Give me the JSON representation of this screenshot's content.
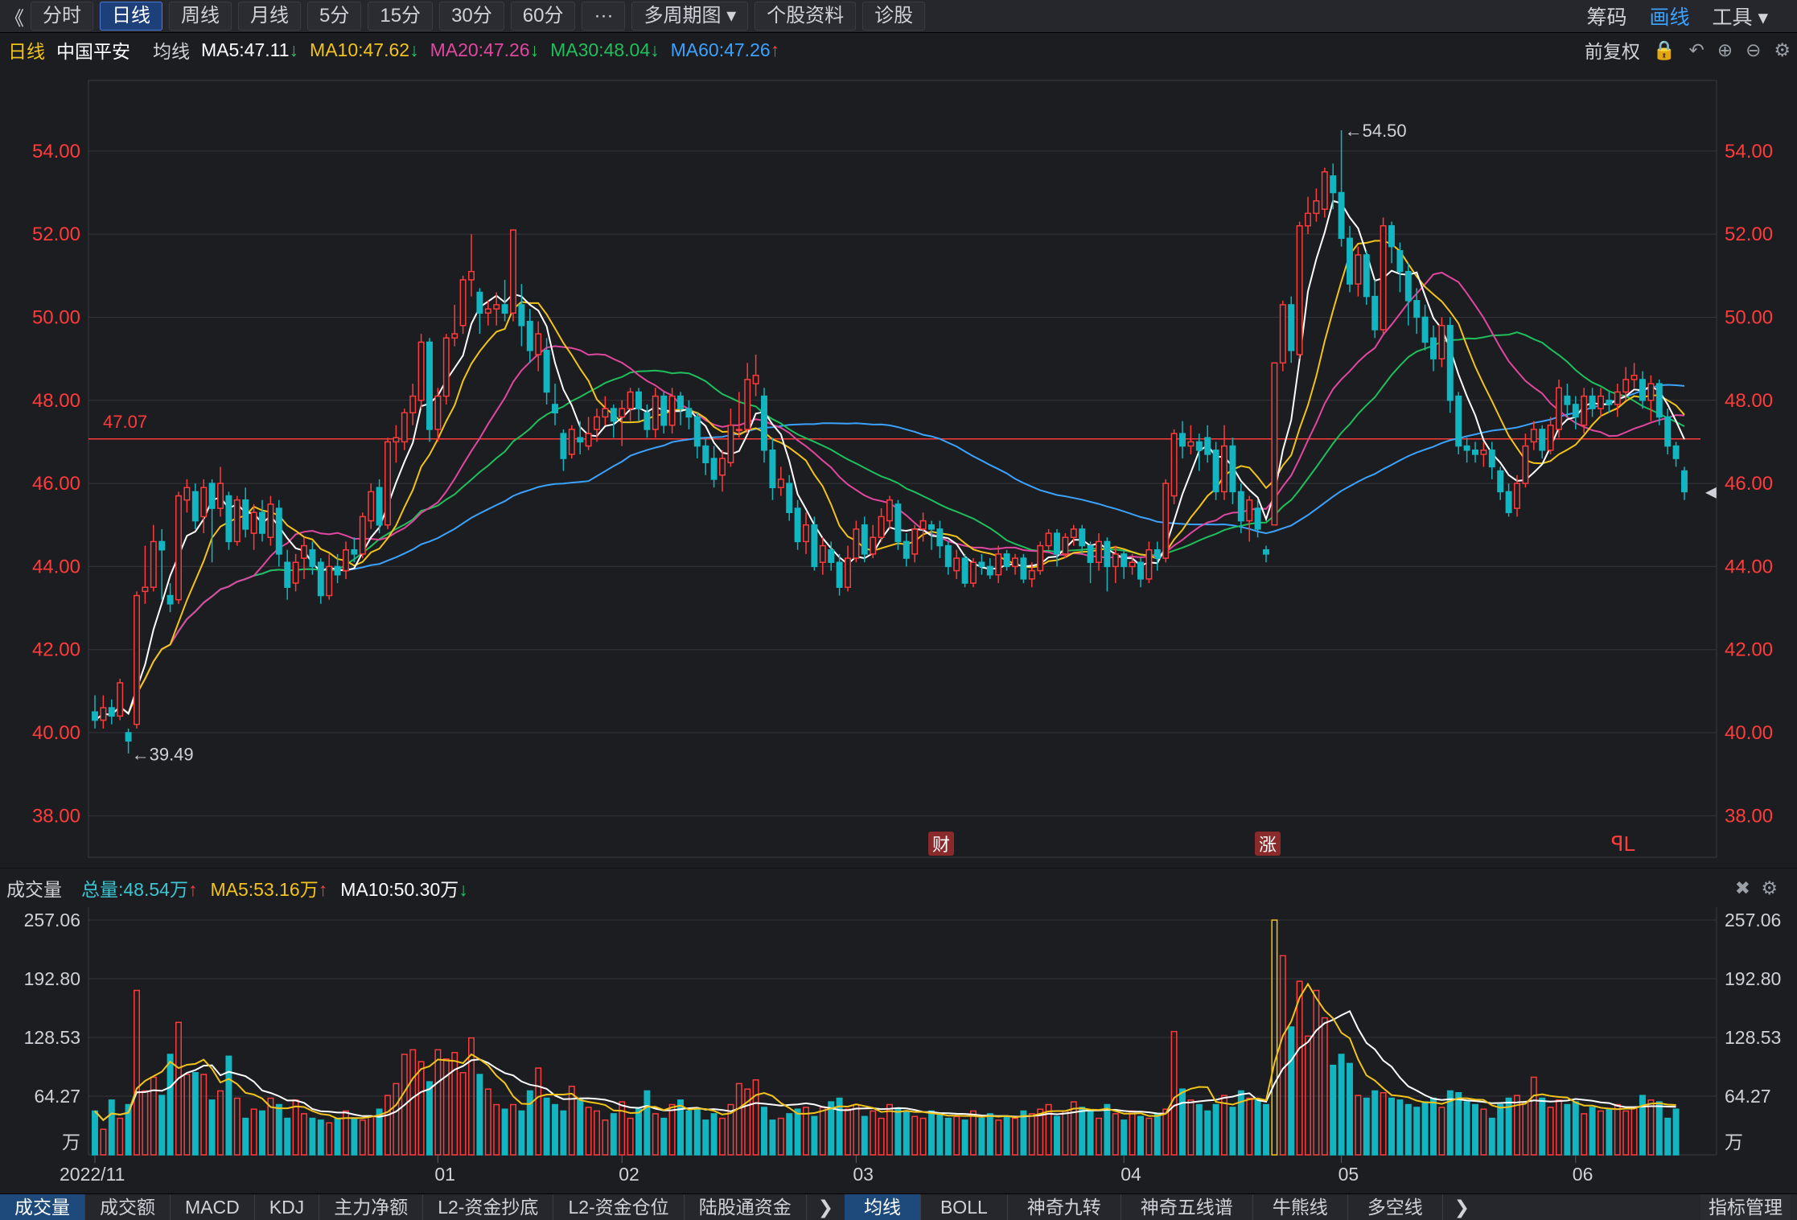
{
  "toolbar": {
    "back": "《",
    "periods": [
      "分时",
      "日线",
      "周线",
      "月线",
      "5分",
      "15分",
      "30分",
      "60分",
      "···",
      "多周期图 ▾",
      "个股资料",
      "诊股"
    ],
    "active_index": 1,
    "right": [
      "筹码",
      "画线",
      "工具 ▾"
    ]
  },
  "ma_line": {
    "period": "日线",
    "stock": "中国平安",
    "label": "均线",
    "items": [
      {
        "text": "MA5:47.11",
        "arrow": "↓",
        "color": "#ffffff",
        "arrow_color": "#22c55e"
      },
      {
        "text": "MA10:47.62",
        "arrow": "↓",
        "color": "#f2c31a",
        "arrow_color": "#22c55e"
      },
      {
        "text": "MA20:47.26",
        "arrow": "↓",
        "color": "#e0479e",
        "arrow_color": "#22c55e"
      },
      {
        "text": "MA30:48.04",
        "arrow": "↓",
        "color": "#1fbf5b",
        "arrow_color": "#22c55e"
      },
      {
        "text": "MA60:47.26",
        "arrow": "↑",
        "color": "#3ba2ff",
        "arrow_color": "#ff3b3b"
      }
    ],
    "right_label": "前复权"
  },
  "chart_data": {
    "type": "candlestick",
    "y_ticks": [
      "54.00",
      "52.00",
      "50.00",
      "48.00",
      "46.00",
      "44.00",
      "42.00",
      "40.00",
      "38.00"
    ],
    "ylim": [
      37,
      55.7
    ],
    "ref_line": {
      "value": 47.07,
      "label": "47.07"
    },
    "high_marker": {
      "value": 54.5,
      "label": "←54.50"
    },
    "low_marker": {
      "value": 39.49,
      "label": "←39.49"
    },
    "x_labels": [
      "2022/11",
      "01",
      "02",
      "03",
      "04",
      "05",
      "06"
    ],
    "event_marks": [
      "财",
      "涨",
      "ꟼL"
    ],
    "candles": [
      [
        40.5,
        40.3,
        40.9,
        40.1
      ],
      [
        40.3,
        40.6,
        40.9,
        40.1
      ],
      [
        40.6,
        40.4,
        40.8,
        40.2
      ],
      [
        40.4,
        41.2,
        41.3,
        40.3
      ],
      [
        40.0,
        39.8,
        40.1,
        39.5
      ],
      [
        40.2,
        43.3,
        43.4,
        40.1
      ],
      [
        43.4,
        43.5,
        44.5,
        43.1
      ],
      [
        43.5,
        44.6,
        45.0,
        43.4
      ],
      [
        44.6,
        44.4,
        44.9,
        43.2
      ],
      [
        43.3,
        43.1,
        43.6,
        42.9
      ],
      [
        43.2,
        45.7,
        45.8,
        43.1
      ],
      [
        45.6,
        45.9,
        46.1,
        45.3
      ],
      [
        45.8,
        45.1,
        46.0,
        44.9
      ],
      [
        45.2,
        45.9,
        46.1,
        44.8
      ],
      [
        46.0,
        45.4,
        46.1,
        44.1
      ],
      [
        45.4,
        46.0,
        46.4,
        45.2
      ],
      [
        45.7,
        44.6,
        45.8,
        44.4
      ],
      [
        44.6,
        45.6,
        45.7,
        44.5
      ],
      [
        45.6,
        44.9,
        45.9,
        44.7
      ],
      [
        44.8,
        45.3,
        45.5,
        44.4
      ],
      [
        45.3,
        44.8,
        45.6,
        44.6
      ],
      [
        44.7,
        45.5,
        45.7,
        44.5
      ],
      [
        45.4,
        44.3,
        45.6,
        44.0
      ],
      [
        44.1,
        43.5,
        44.4,
        43.2
      ],
      [
        43.6,
        44.1,
        44.3,
        43.4
      ],
      [
        44.2,
        44.5,
        44.7,
        43.7
      ],
      [
        44.4,
        44.0,
        44.6,
        43.8
      ],
      [
        44.1,
        43.3,
        44.2,
        43.1
      ],
      [
        43.3,
        44.0,
        44.3,
        43.2
      ],
      [
        44.0,
        43.8,
        44.3,
        43.6
      ],
      [
        43.9,
        44.4,
        44.6,
        43.7
      ],
      [
        44.4,
        44.3,
        44.7,
        44.1
      ],
      [
        44.3,
        45.2,
        45.3,
        44.2
      ],
      [
        45.1,
        45.8,
        46.0,
        44.9
      ],
      [
        45.9,
        45.0,
        46.1,
        44.8
      ],
      [
        45.0,
        47.0,
        47.1,
        44.9
      ],
      [
        47.0,
        47.1,
        47.4,
        46.5
      ],
      [
        47.0,
        47.7,
        47.8,
        46.8
      ],
      [
        47.7,
        48.1,
        48.4,
        47.4
      ],
      [
        48.0,
        49.4,
        49.6,
        47.8
      ],
      [
        49.4,
        47.3,
        49.5,
        47.0
      ],
      [
        47.3,
        48.1,
        48.3,
        47.0
      ],
      [
        48.1,
        49.5,
        49.6,
        47.9
      ],
      [
        49.5,
        49.6,
        50.3,
        49.3
      ],
      [
        49.8,
        50.9,
        51.0,
        49.6
      ],
      [
        50.9,
        51.1,
        52.0,
        50.5
      ],
      [
        50.6,
        50.1,
        50.7,
        49.6
      ],
      [
        50.1,
        50.2,
        50.4,
        49.8
      ],
      [
        50.2,
        50.3,
        50.6,
        49.8
      ],
      [
        50.3,
        50.1,
        50.9,
        49.9
      ],
      [
        50.1,
        52.1,
        52.1,
        49.9
      ],
      [
        50.3,
        49.8,
        50.8,
        49.3
      ],
      [
        49.9,
        49.2,
        50.2,
        48.9
      ],
      [
        49.1,
        49.6,
        49.9,
        48.7
      ],
      [
        49.2,
        48.2,
        49.5,
        47.9
      ],
      [
        47.9,
        47.7,
        48.4,
        47.4
      ],
      [
        47.2,
        46.6,
        47.3,
        46.3
      ],
      [
        46.7,
        47.3,
        47.4,
        46.6
      ],
      [
        47.1,
        47.0,
        47.5,
        46.7
      ],
      [
        46.9,
        47.2,
        47.6,
        46.8
      ],
      [
        47.3,
        47.6,
        47.8,
        47.0
      ],
      [
        47.6,
        47.8,
        48.1,
        47.4
      ],
      [
        47.8,
        47.5,
        47.9,
        47.1
      ],
      [
        47.6,
        47.8,
        48.0,
        46.9
      ],
      [
        47.8,
        48.2,
        48.3,
        47.5
      ],
      [
        48.2,
        47.8,
        48.3,
        47.5
      ],
      [
        47.7,
        47.3,
        47.9,
        47.1
      ],
      [
        47.3,
        48.1,
        48.3,
        47.1
      ],
      [
        48.1,
        47.4,
        48.2,
        47.2
      ],
      [
        47.4,
        48.1,
        48.3,
        47.2
      ],
      [
        48.1,
        47.8,
        48.2,
        47.4
      ],
      [
        47.8,
        47.6,
        48.0,
        47.3
      ],
      [
        47.6,
        46.9,
        47.7,
        46.6
      ],
      [
        46.9,
        46.5,
        47.1,
        46.2
      ],
      [
        46.6,
        46.1,
        46.9,
        45.9
      ],
      [
        46.2,
        46.6,
        46.8,
        45.8
      ],
      [
        46.5,
        47.4,
        47.8,
        46.4
      ],
      [
        47.3,
        47.3,
        48.2,
        47.1
      ],
      [
        47.3,
        48.5,
        48.9,
        47.2
      ],
      [
        48.4,
        48.6,
        49.1,
        48.1
      ],
      [
        48.1,
        46.8,
        48.3,
        46.5
      ],
      [
        46.8,
        45.9,
        47.1,
        45.6
      ],
      [
        45.9,
        46.1,
        46.4,
        45.7
      ],
      [
        46.0,
        45.3,
        46.2,
        45.1
      ],
      [
        45.4,
        44.6,
        45.6,
        44.4
      ],
      [
        44.6,
        45.0,
        45.3,
        44.3
      ],
      [
        45.0,
        44.0,
        45.2,
        43.9
      ],
      [
        44.1,
        44.5,
        44.7,
        43.8
      ],
      [
        44.4,
        44.1,
        44.6,
        43.9
      ],
      [
        44.1,
        43.5,
        44.3,
        43.3
      ],
      [
        43.5,
        44.2,
        44.5,
        43.4
      ],
      [
        44.2,
        44.9,
        45.1,
        44.1
      ],
      [
        45.0,
        44.3,
        45.2,
        44.1
      ],
      [
        44.3,
        44.7,
        45.0,
        44.2
      ],
      [
        44.7,
        45.2,
        45.4,
        44.6
      ],
      [
        45.1,
        45.6,
        45.7,
        44.9
      ],
      [
        45.5,
        44.6,
        45.6,
        44.4
      ],
      [
        44.6,
        44.2,
        44.8,
        44.0
      ],
      [
        44.3,
        44.9,
        45.0,
        44.1
      ],
      [
        44.9,
        45.1,
        45.3,
        44.6
      ],
      [
        45.0,
        44.9,
        45.1,
        44.4
      ],
      [
        44.9,
        44.5,
        45.1,
        44.2
      ],
      [
        44.5,
        44.0,
        44.6,
        43.8
      ],
      [
        43.9,
        44.2,
        44.4,
        43.7
      ],
      [
        44.2,
        43.6,
        44.3,
        43.5
      ],
      [
        43.6,
        44.1,
        44.2,
        43.5
      ],
      [
        44.1,
        44.0,
        44.3,
        43.8
      ],
      [
        44.0,
        43.8,
        44.2,
        43.7
      ],
      [
        43.8,
        44.3,
        44.5,
        43.6
      ],
      [
        44.3,
        44.0,
        44.4,
        43.9
      ],
      [
        44.0,
        44.2,
        44.3,
        43.8
      ],
      [
        44.2,
        43.7,
        44.3,
        43.6
      ],
      [
        43.7,
        43.9,
        44.1,
        43.5
      ],
      [
        43.9,
        44.5,
        44.6,
        43.8
      ],
      [
        44.5,
        44.8,
        44.9,
        44.4
      ],
      [
        44.8,
        44.3,
        44.9,
        44.0
      ],
      [
        44.3,
        44.7,
        44.8,
        44.2
      ],
      [
        44.7,
        44.9,
        45.0,
        44.5
      ],
      [
        44.9,
        44.5,
        45.0,
        44.3
      ],
      [
        44.5,
        44.1,
        44.6,
        43.6
      ],
      [
        44.1,
        44.6,
        44.8,
        43.9
      ],
      [
        44.6,
        44.0,
        44.7,
        43.4
      ],
      [
        44.0,
        44.3,
        44.5,
        43.6
      ],
      [
        44.3,
        44.0,
        44.4,
        43.7
      ],
      [
        44.0,
        44.1,
        44.3,
        43.8
      ],
      [
        44.1,
        43.7,
        44.2,
        43.5
      ],
      [
        43.7,
        44.4,
        44.6,
        43.6
      ],
      [
        44.4,
        44.2,
        44.6,
        43.9
      ],
      [
        44.2,
        46.0,
        46.1,
        44.1
      ],
      [
        45.7,
        47.2,
        47.3,
        45.5
      ],
      [
        47.2,
        46.9,
        47.5,
        46.6
      ],
      [
        46.9,
        47.0,
        47.4,
        46.7
      ],
      [
        47.0,
        46.8,
        47.2,
        46.3
      ],
      [
        47.1,
        46.7,
        47.4,
        46.5
      ],
      [
        46.8,
        45.8,
        47.0,
        45.6
      ],
      [
        45.8,
        46.9,
        47.4,
        45.6
      ],
      [
        46.9,
        45.8,
        47.1,
        45.5
      ],
      [
        45.8,
        45.1,
        46.0,
        44.8
      ],
      [
        45.1,
        45.6,
        45.7,
        44.6
      ],
      [
        45.4,
        44.9,
        45.6,
        44.7
      ],
      [
        44.4,
        44.3,
        44.5,
        44.1
      ],
      [
        45.0,
        48.9,
        48.9,
        45.0
      ],
      [
        48.9,
        50.3,
        50.4,
        48.7
      ],
      [
        50.3,
        49.2,
        50.5,
        48.9
      ],
      [
        49.1,
        52.2,
        52.3,
        49.0
      ],
      [
        52.2,
        52.5,
        52.9,
        52.0
      ],
      [
        52.5,
        52.8,
        53.1,
        52.3
      ],
      [
        52.6,
        53.5,
        53.6,
        52.4
      ],
      [
        53.4,
        53.0,
        53.7,
        52.6
      ],
      [
        53.0,
        51.9,
        54.5,
        51.7
      ],
      [
        51.9,
        50.8,
        52.2,
        50.6
      ],
      [
        50.8,
        51.5,
        51.7,
        50.5
      ],
      [
        51.5,
        50.5,
        51.6,
        50.3
      ],
      [
        50.5,
        49.7,
        50.9,
        49.5
      ],
      [
        49.7,
        52.2,
        52.4,
        49.6
      ],
      [
        52.2,
        51.7,
        52.3,
        51.3
      ],
      [
        51.6,
        51.1,
        51.8,
        50.6
      ],
      [
        51.1,
        50.4,
        51.3,
        49.8
      ],
      [
        50.4,
        50.0,
        50.7,
        49.6
      ],
      [
        50.0,
        49.4,
        50.3,
        49.2
      ],
      [
        49.5,
        49.0,
        49.8,
        48.7
      ],
      [
        49.0,
        49.8,
        50.0,
        48.8
      ],
      [
        49.8,
        48.0,
        50.0,
        47.7
      ],
      [
        48.1,
        46.9,
        48.2,
        46.7
      ],
      [
        46.9,
        46.8,
        47.1,
        46.5
      ],
      [
        46.8,
        46.7,
        47.0,
        46.5
      ],
      [
        46.7,
        46.8,
        47.0,
        46.4
      ],
      [
        46.8,
        46.4,
        47.0,
        46.1
      ],
      [
        46.3,
        45.8,
        46.4,
        45.6
      ],
      [
        45.8,
        45.3,
        46.0,
        45.2
      ],
      [
        45.4,
        46.0,
        46.2,
        45.2
      ],
      [
        46.0,
        46.9,
        47.2,
        45.9
      ],
      [
        47.0,
        47.3,
        47.5,
        46.8
      ],
      [
        47.3,
        46.8,
        47.4,
        46.6
      ],
      [
        46.8,
        47.4,
        47.6,
        46.7
      ],
      [
        47.3,
        48.3,
        48.5,
        47.1
      ],
      [
        48.1,
        47.9,
        48.4,
        47.6
      ],
      [
        47.9,
        47.6,
        48.1,
        47.3
      ],
      [
        47.4,
        48.1,
        48.3,
        47.2
      ],
      [
        48.1,
        47.8,
        48.3,
        47.6
      ],
      [
        47.8,
        48.1,
        48.3,
        47.6
      ],
      [
        48.0,
        47.9,
        48.2,
        47.7
      ],
      [
        47.9,
        48.2,
        48.4,
        47.6
      ],
      [
        48.2,
        48.5,
        48.8,
        48.0
      ],
      [
        48.5,
        48.6,
        48.9,
        48.3
      ],
      [
        48.5,
        48.0,
        48.7,
        47.8
      ],
      [
        48.0,
        48.4,
        48.6,
        47.5
      ],
      [
        48.4,
        47.6,
        48.5,
        47.4
      ],
      [
        47.6,
        46.9,
        47.8,
        46.7
      ],
      [
        46.9,
        46.6,
        47.0,
        46.4
      ],
      [
        46.3,
        45.8,
        46.4,
        45.6
      ]
    ],
    "volume": {
      "label": "成交量",
      "items": [
        {
          "text": "总量:48.54万",
          "arrow": "↑",
          "color": "#3bc6d2",
          "arrow_color": "#ff3b3b"
        },
        {
          "text": "MA5:53.16万",
          "arrow": "↑",
          "color": "#f2c31a",
          "arrow_color": "#ff3b3b"
        },
        {
          "text": "MA10:50.30万",
          "arrow": "↓",
          "color": "#ffffff",
          "arrow_color": "#22c55e"
        }
      ],
      "y_ticks": [
        "257.06",
        "192.80",
        "128.53",
        "64.27",
        "万"
      ],
      "ylim": [
        0,
        257.06
      ],
      "values": [
        48,
        28,
        60,
        40,
        55,
        180,
        70,
        85,
        65,
        110,
        145,
        88,
        90,
        88,
        60,
        70,
        108,
        62,
        40,
        50,
        48,
        62,
        55,
        40,
        60,
        45,
        40,
        38,
        35,
        40,
        48,
        40,
        38,
        42,
        50,
        65,
        78,
        110,
        115,
        102,
        80,
        115,
        105,
        112,
        90,
        128,
        88,
        72,
        55,
        50,
        55,
        48,
        70,
        95,
        62,
        55,
        48,
        75,
        60,
        52,
        48,
        38,
        45,
        58,
        40,
        50,
        70,
        45,
        40,
        55,
        60,
        48,
        50,
        38,
        45,
        40,
        55,
        78,
        72,
        82,
        52,
        38,
        40,
        45,
        50,
        52,
        42,
        52,
        58,
        62,
        50,
        55,
        42,
        48,
        40,
        55,
        50,
        48,
        42,
        40,
        48,
        45,
        40,
        42,
        38,
        48,
        40,
        45,
        38,
        42,
        40,
        48,
        45,
        50,
        55,
        42,
        48,
        58,
        52,
        48,
        40,
        55,
        45,
        38,
        48,
        42,
        40,
        45,
        50,
        135,
        72,
        60,
        55,
        48,
        55,
        65,
        52,
        70,
        62,
        60,
        55,
        257,
        218,
        140,
        190,
        130,
        180,
        150,
        98,
        110,
        100,
        65,
        62,
        70,
        68,
        62,
        60,
        55,
        52,
        58,
        62,
        52,
        70,
        68,
        58,
        55,
        50,
        40,
        55,
        62,
        65,
        58,
        85,
        62,
        52,
        60,
        55,
        58,
        45,
        52,
        48,
        50,
        55,
        48,
        52,
        65,
        60,
        58,
        40,
        50
      ]
    }
  },
  "bottom_tabs": {
    "left": [
      "成交量",
      "成交额",
      "MACD",
      "KDJ",
      "主力净额",
      "L2-资金抄底",
      "L2-资金仓位",
      "陆股通资金"
    ],
    "right": [
      "均线",
      "BOLL",
      "神奇九转",
      "神奇五线谱",
      "牛熊线",
      "多空线"
    ],
    "manage": "指标管理"
  }
}
